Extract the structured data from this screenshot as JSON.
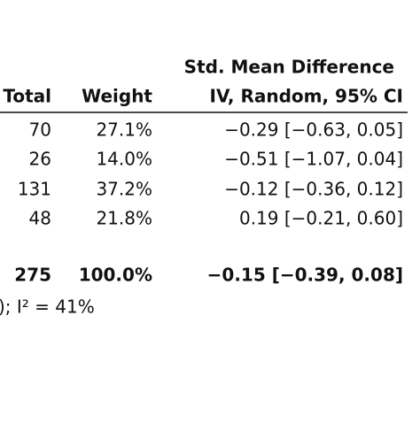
{
  "table": {
    "group_header": "Std. Mean Difference",
    "header": [
      "Total",
      "Weight",
      "IV, Random, 95% CI"
    ],
    "rows": [
      [
        "70",
        "27.1%",
        "−0.29 [−0.63, 0.05]"
      ],
      [
        "26",
        "14.0%",
        "−0.51 [−1.07, 0.04]"
      ],
      [
        "131",
        "37.2%",
        "−0.12 [−0.36, 0.12]"
      ],
      [
        "48",
        "21.8%",
        "0.19 [−0.21, 0.60]"
      ]
    ],
    "total_row": [
      "275",
      "100.0%",
      "−0.15 [−0.39, 0.08]"
    ],
    "footnote": "); I² = 41%"
  }
}
